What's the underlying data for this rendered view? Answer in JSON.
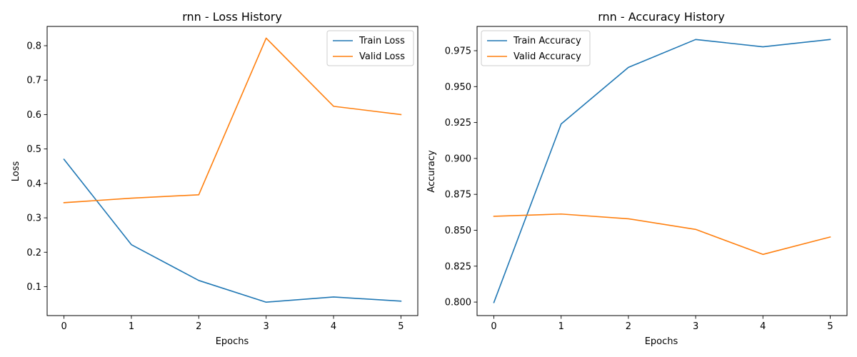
{
  "colors": {
    "train": "#1f77b4",
    "valid": "#ff7f0e"
  },
  "chart_data": [
    {
      "type": "line",
      "title": "rnn - Loss History",
      "xlabel": "Epochs",
      "ylabel": "Loss",
      "x": [
        0,
        1,
        2,
        3,
        4,
        5
      ],
      "xlim": [
        -0.25,
        5.25
      ],
      "ylim": [
        0.016,
        0.856
      ],
      "xticks": [
        0,
        1,
        2,
        3,
        4,
        5
      ],
      "yticks": [
        0.1,
        0.2,
        0.3,
        0.4,
        0.5,
        0.6,
        0.7,
        0.8
      ],
      "tick_decimals": 1,
      "legend": "upper right",
      "grid": false,
      "series": [
        {
          "name": "Train Loss",
          "color": "#1f77b4",
          "values": [
            0.47,
            0.222,
            0.118,
            0.055,
            0.07,
            0.058
          ]
        },
        {
          "name": "Valid Loss",
          "color": "#ff7f0e",
          "values": [
            0.344,
            0.357,
            0.367,
            0.822,
            0.624,
            0.6
          ]
        }
      ]
    },
    {
      "type": "line",
      "title": "rnn - Accuracy History",
      "xlabel": "Epochs",
      "ylabel": "Accuracy",
      "x": [
        0,
        1,
        2,
        3,
        4,
        5
      ],
      "xlim": [
        -0.25,
        5.25
      ],
      "ylim": [
        0.7906,
        0.9919
      ],
      "xticks": [
        0,
        1,
        2,
        3,
        4,
        5
      ],
      "yticks": [
        0.8,
        0.825,
        0.85,
        0.875,
        0.9,
        0.925,
        0.95,
        0.975
      ],
      "tick_decimals": 3,
      "legend": "upper left",
      "grid": false,
      "series": [
        {
          "name": "Train Accuracy",
          "color": "#1f77b4",
          "values": [
            0.7997,
            0.924,
            0.9634,
            0.9828,
            0.9777,
            0.9828
          ]
        },
        {
          "name": "Valid Accuracy",
          "color": "#ff7f0e",
          "values": [
            0.8597,
            0.8613,
            0.858,
            0.8506,
            0.8332,
            0.8453
          ]
        }
      ]
    }
  ]
}
